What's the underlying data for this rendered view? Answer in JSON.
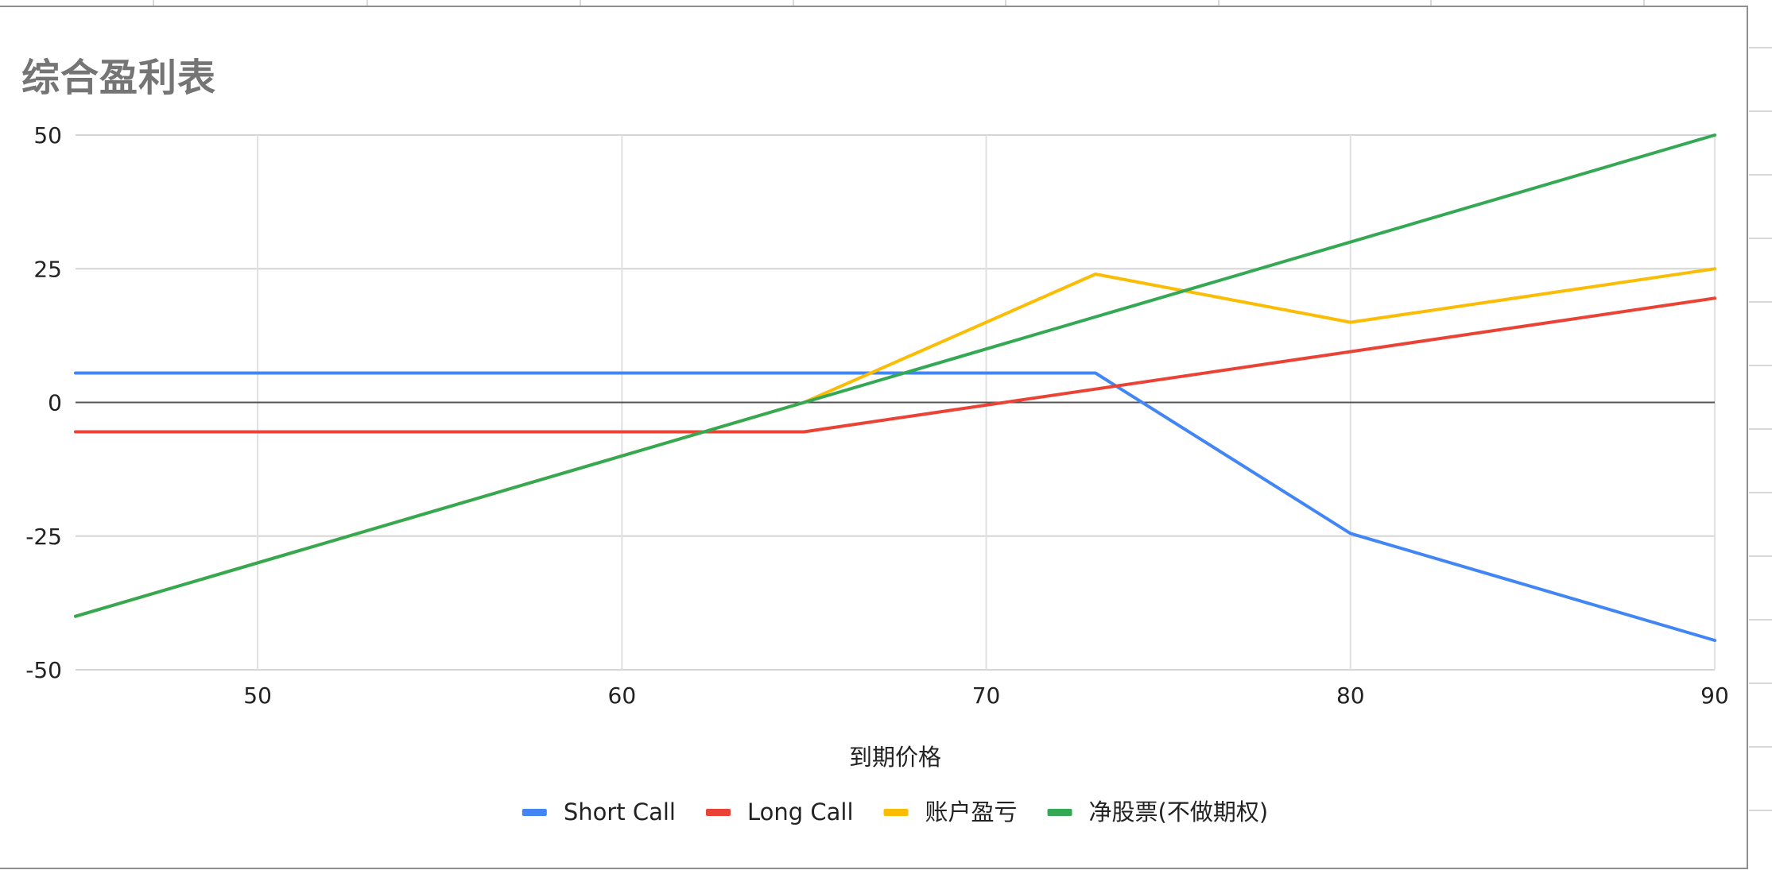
{
  "chart_data": {
    "type": "line",
    "title": "综合盈利表",
    "xlabel": "到期价格",
    "ylabel": "",
    "xlim": [
      45,
      90
    ],
    "ylim": [
      -50,
      50
    ],
    "x_ticks": [
      50,
      60,
      70,
      80,
      90
    ],
    "y_ticks": [
      50,
      25,
      0,
      -25,
      -50
    ],
    "grid": true,
    "legend_position": "bottom",
    "series": [
      {
        "name": "Short Call",
        "color": "#4285f4",
        "x": [
          45,
          73,
          80,
          90
        ],
        "y": [
          5.5,
          5.5,
          -24.5,
          -44.5
        ]
      },
      {
        "name": "Long Call",
        "color": "#ea4335",
        "x": [
          45,
          65,
          90
        ],
        "y": [
          -5.5,
          -5.5,
          19.5
        ]
      },
      {
        "name": "账户盈亏",
        "color": "#fbbc04",
        "x": [
          45,
          65,
          73,
          80,
          90
        ],
        "y": [
          -40,
          0,
          24,
          15,
          25
        ]
      },
      {
        "name": "净股票(不做期权)",
        "color": "#34a853",
        "x": [
          45,
          90
        ],
        "y": [
          -40,
          50
        ]
      }
    ]
  }
}
